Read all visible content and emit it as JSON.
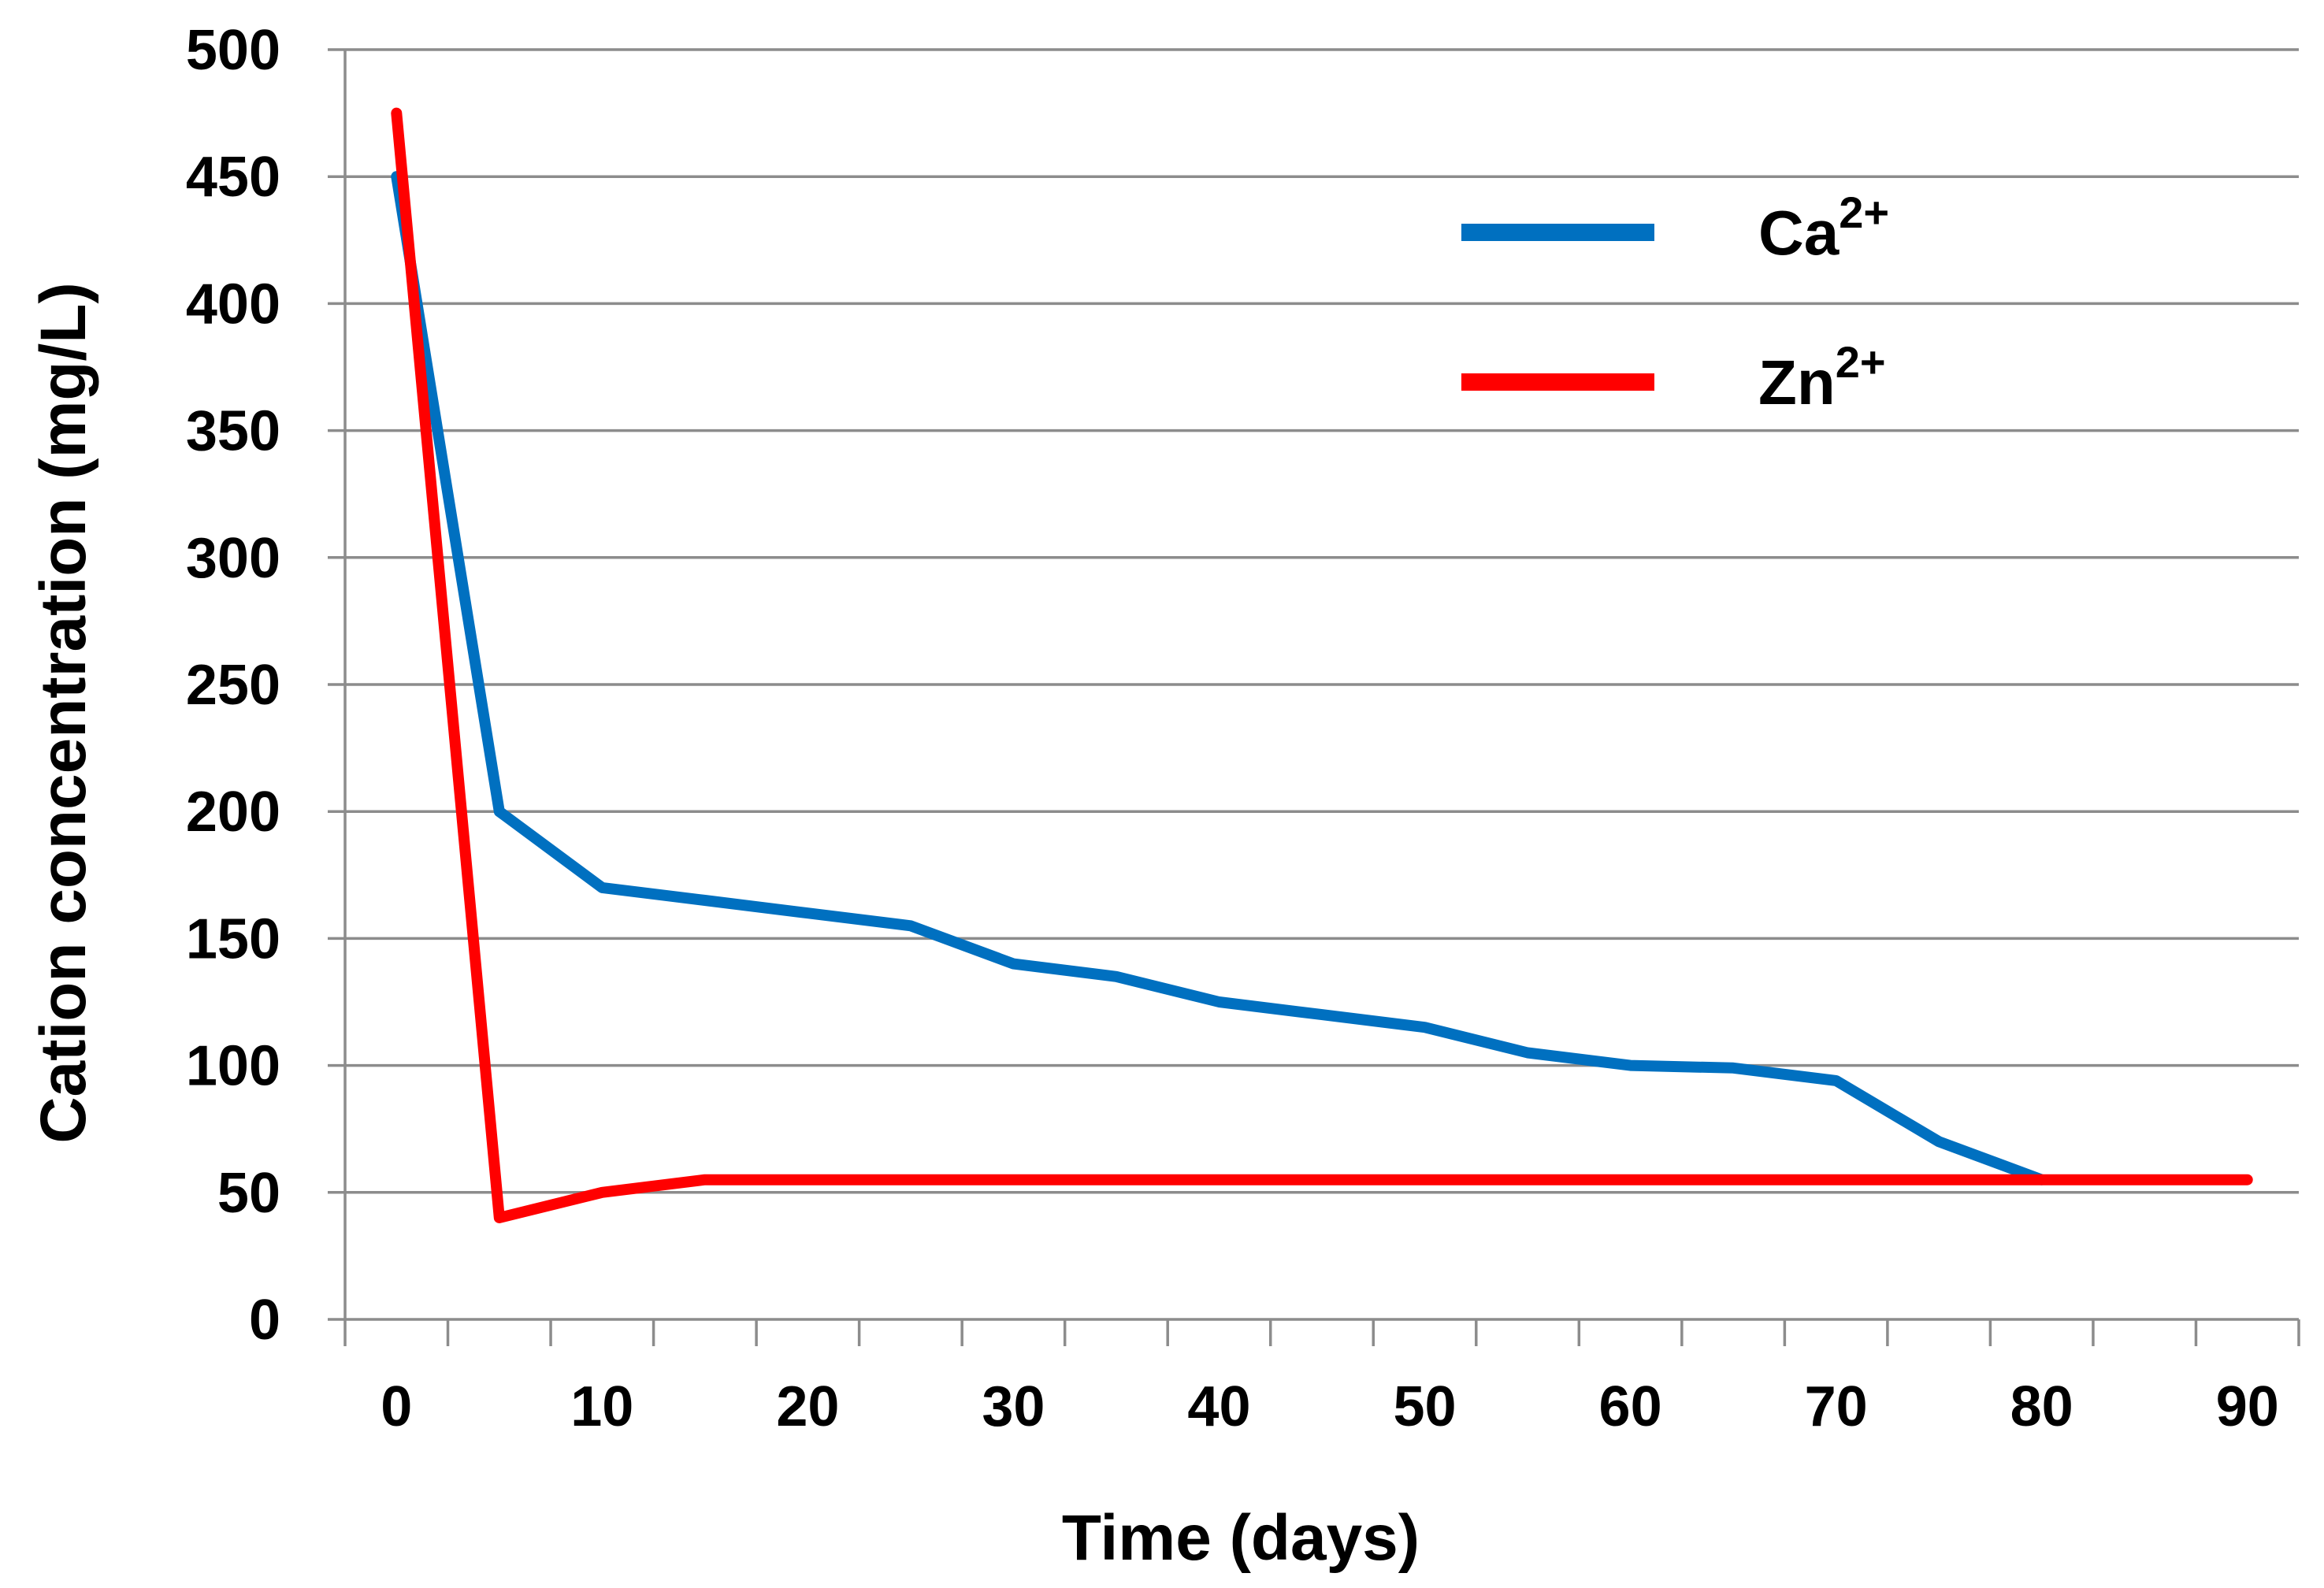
{
  "chart_data": {
    "type": "line",
    "title": "",
    "xlabel": "Time (days)",
    "ylabel": "Cation concentration (mg/L)",
    "xlim": [
      -2.5,
      92.5
    ],
    "ylim": [
      0,
      500
    ],
    "x_ticks": [
      0,
      10,
      20,
      30,
      40,
      50,
      60,
      70,
      80,
      90
    ],
    "x_minor_ticks": [
      -2.5,
      2.5,
      7.5,
      12.5,
      17.5,
      22.5,
      27.5,
      32.5,
      37.5,
      42.5,
      47.5,
      52.5,
      57.5,
      62.5,
      67.5,
      72.5,
      77.5,
      82.5,
      87.5,
      92.5
    ],
    "y_ticks": [
      0,
      50,
      100,
      150,
      200,
      250,
      300,
      350,
      400,
      450,
      500
    ],
    "grid": true,
    "legend_position": "top-right",
    "series": [
      {
        "name": "Ca",
        "superscript": "2+",
        "color": "#0070C0",
        "x": [
          0,
          5,
          10,
          15,
          20,
          25,
          30,
          35,
          40,
          45,
          50,
          55,
          60,
          65,
          70,
          75,
          80
        ],
        "values": [
          450,
          200,
          170,
          165,
          160,
          155,
          140,
          135,
          125,
          120,
          115,
          105,
          100,
          99,
          94,
          70,
          55
        ]
      },
      {
        "name": "Zn",
        "superscript": "2+",
        "color": "#FF0000",
        "x": [
          0,
          5,
          10,
          15,
          20,
          25,
          30,
          35,
          40,
          45,
          50,
          55,
          60,
          65,
          70,
          75,
          80,
          85,
          90
        ],
        "values": [
          475,
          40,
          50,
          55,
          55,
          55,
          55,
          55,
          55,
          55,
          55,
          55,
          55,
          55,
          55,
          55,
          55,
          55,
          55
        ]
      }
    ]
  }
}
